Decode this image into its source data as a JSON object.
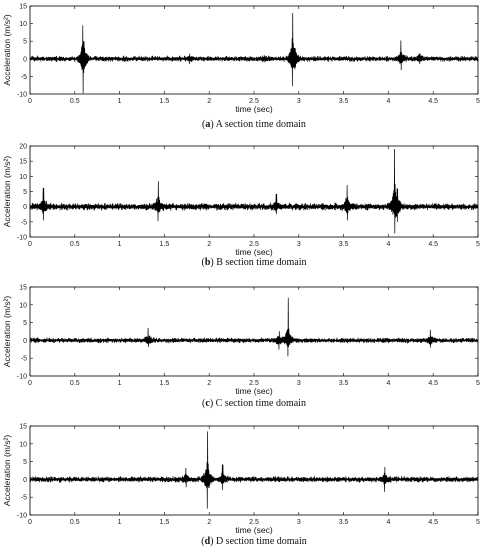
{
  "chart_data": [
    {
      "type": "line",
      "caption": {
        "letter": "a",
        "text": " A section time domain"
      },
      "xlabel": "time (sec)",
      "ylabel": "Acceleration (m/s²)",
      "xlim": [
        0,
        5
      ],
      "ylim": [
        -10,
        15
      ],
      "xticks": [
        0,
        0.5,
        1,
        1.5,
        2,
        2.5,
        3,
        3.5,
        4,
        4.5,
        5
      ],
      "yticks": [
        -10,
        -5,
        0,
        5,
        10,
        15
      ],
      "noise": 0.55,
      "events": [
        {
          "t": 0.59,
          "pos": 8.5,
          "neg": -8.8
        },
        {
          "t": 0.6,
          "pos": 5,
          "neg": -4
        },
        {
          "t": 1.78,
          "pos": 1.5,
          "neg": -1.5
        },
        {
          "t": 2.62,
          "pos": 1.0,
          "neg": -1.0
        },
        {
          "t": 2.93,
          "pos": 12.8,
          "neg": -7.5
        },
        {
          "t": 2.96,
          "pos": 3,
          "neg": -3
        },
        {
          "t": 4.14,
          "pos": 5.2,
          "neg": -3.2
        },
        {
          "t": 4.35,
          "pos": 1.5,
          "neg": -1.5
        }
      ]
    },
    {
      "type": "line",
      "caption": {
        "letter": "b",
        "text": " B section time domain"
      },
      "xlabel": "time (sec)",
      "ylabel": "Acceleration (m/s²)",
      "xlim": [
        0,
        5
      ],
      "ylim": [
        -10,
        20
      ],
      "xticks": [
        0,
        0.5,
        1,
        1.5,
        2,
        2.5,
        3,
        3.5,
        4,
        4.5,
        5
      ],
      "yticks": [
        -10,
        -5,
        0,
        5,
        10,
        15,
        20
      ],
      "noise": 0.8,
      "events": [
        {
          "t": 0.15,
          "pos": 6.2,
          "neg": -4.5
        },
        {
          "t": 1.43,
          "pos": 8.4,
          "neg": -4.8
        },
        {
          "t": 2.75,
          "pos": 4.2,
          "neg": -2.5
        },
        {
          "t": 3.54,
          "pos": 7.1,
          "neg": -4.5
        },
        {
          "t": 4.07,
          "pos": 18.6,
          "neg": -8.2
        },
        {
          "t": 4.1,
          "pos": 6,
          "neg": -5
        }
      ]
    },
    {
      "type": "line",
      "caption": {
        "letter": "c",
        "text": " C section time domain"
      },
      "xlabel": "time (sec)",
      "ylabel": "Acceleration (m/s²)",
      "xlim": [
        0,
        5
      ],
      "ylim": [
        -10,
        15
      ],
      "xticks": [
        0,
        0.5,
        1,
        1.5,
        2,
        2.5,
        3,
        3.5,
        4,
        4.5,
        5
      ],
      "yticks": [
        -10,
        -5,
        0,
        5,
        10,
        15
      ],
      "noise": 0.5,
      "events": [
        {
          "t": 1.32,
          "pos": 3.5,
          "neg": -1.8
        },
        {
          "t": 2.78,
          "pos": 2.6,
          "neg": -2.6
        },
        {
          "t": 2.88,
          "pos": 12.0,
          "neg": -4.5
        },
        {
          "t": 4.47,
          "pos": 3.0,
          "neg": -2.0
        }
      ]
    },
    {
      "type": "line",
      "caption": {
        "letter": "d",
        "text": " D section time domain"
      },
      "xlabel": "time (sec)",
      "ylabel": "Acceleration (m/s²)",
      "xlim": [
        0,
        5
      ],
      "ylim": [
        -10,
        15
      ],
      "xticks": [
        0,
        0.5,
        1,
        1.5,
        2,
        2.5,
        3,
        3.5,
        4,
        4.5,
        5
      ],
      "yticks": [
        -10,
        -5,
        0,
        5,
        10,
        15
      ],
      "noise": 0.55,
      "events": [
        {
          "t": 1.74,
          "pos": 3.2,
          "neg": -2.2
        },
        {
          "t": 1.98,
          "pos": 13.5,
          "neg": -8.2
        },
        {
          "t": 2.15,
          "pos": 4.2,
          "neg": -3.0
        },
        {
          "t": 3.96,
          "pos": 3.5,
          "neg": -3.5
        }
      ]
    }
  ]
}
